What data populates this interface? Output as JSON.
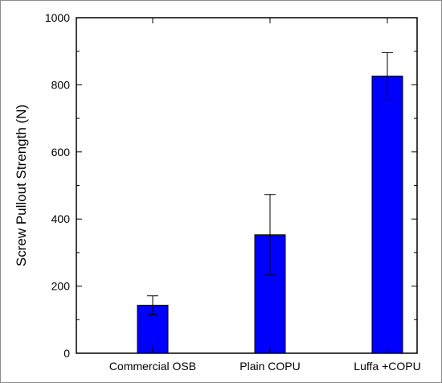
{
  "chart_data": {
    "type": "bar",
    "categories": [
      "Commercial OSB",
      "Plain COPU",
      "Luffa +COPU"
    ],
    "values": [
      143,
      353,
      826
    ],
    "errors": [
      28,
      120,
      70
    ],
    "title": "",
    "xlabel": "",
    "ylabel": "Screw Pullout Strength (N)",
    "ylim": [
      0,
      1000
    ],
    "yticks": [
      0,
      200,
      400,
      600,
      800,
      1000
    ],
    "grid": false,
    "bar_color": "#0000ff"
  }
}
